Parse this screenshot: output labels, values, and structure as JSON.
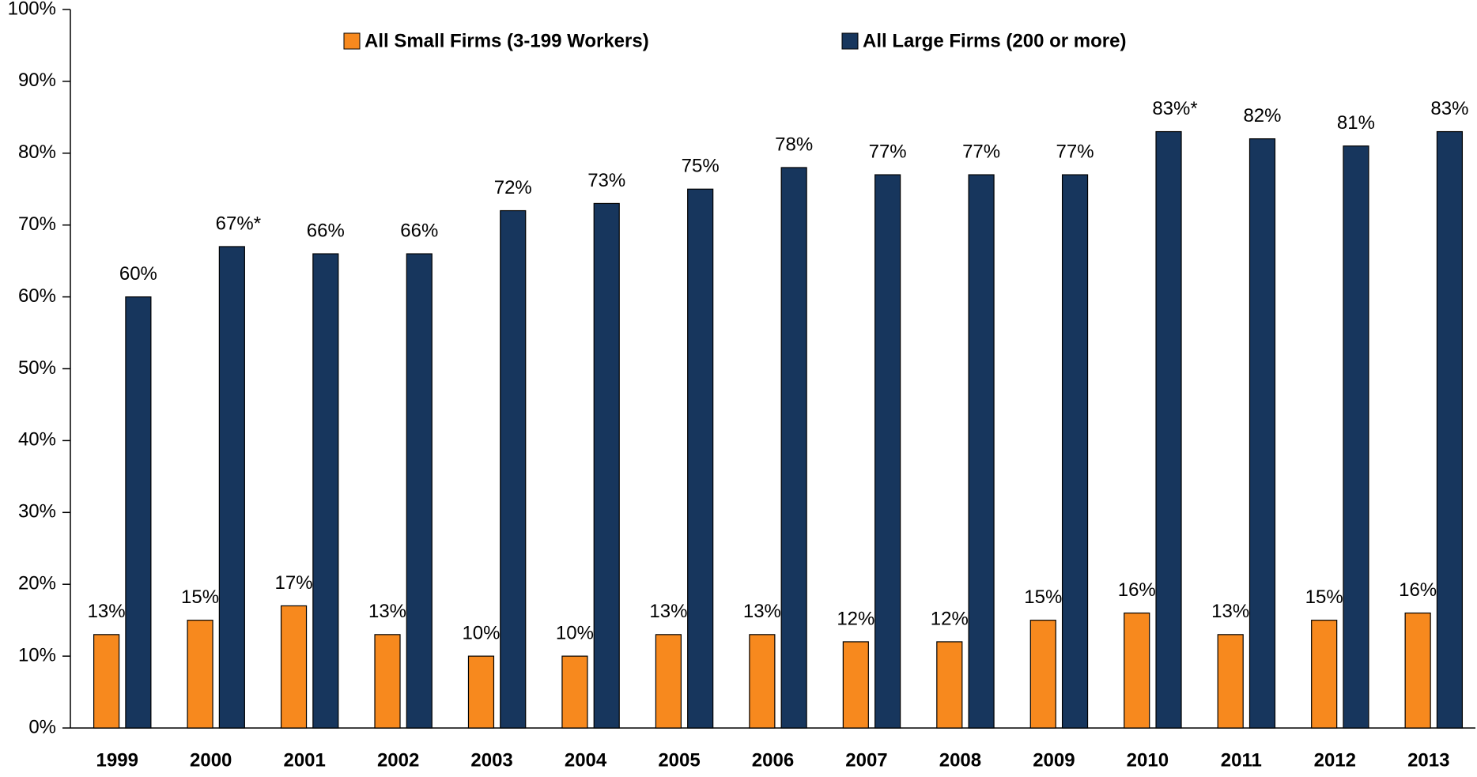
{
  "chart_data": {
    "type": "bar",
    "categories": [
      "1999",
      "2000",
      "2001",
      "2002",
      "2003",
      "2004",
      "2005",
      "2006",
      "2007",
      "2008",
      "2009",
      "2010",
      "2011",
      "2012",
      "2013"
    ],
    "series": [
      {
        "name": "All Small Firms (3-199 Workers)",
        "color": "#f7891e",
        "values": [
          13,
          15,
          17,
          13,
          10,
          10,
          13,
          13,
          12,
          12,
          15,
          16,
          13,
          15,
          16
        ],
        "value_labels": [
          "13%",
          "15%",
          "17%",
          "13%",
          "10%",
          "10%",
          "13%",
          "13%",
          "12%",
          "12%",
          "15%",
          "16%",
          "13%",
          "15%",
          "16%"
        ]
      },
      {
        "name": "All Large Firms (200 or more)",
        "color": "#17365d",
        "values": [
          60,
          67,
          66,
          66,
          72,
          73,
          75,
          78,
          77,
          77,
          77,
          83,
          82,
          81,
          83
        ],
        "value_labels": [
          "60%",
          "67%*",
          "66%",
          "66%",
          "72%",
          "73%",
          "75%",
          "78%",
          "77%",
          "77%",
          "77%",
          "83%*",
          "82%",
          "81%",
          "83%"
        ]
      }
    ],
    "ylim": [
      0,
      100
    ],
    "yticks": [
      {
        "value": 0,
        "label": "0%"
      },
      {
        "value": 10,
        "label": "10%"
      },
      {
        "value": 20,
        "label": "20%"
      },
      {
        "value": 30,
        "label": "30%"
      },
      {
        "value": 40,
        "label": "40%"
      },
      {
        "value": 50,
        "label": "50%"
      },
      {
        "value": 60,
        "label": "60%"
      },
      {
        "value": 70,
        "label": "70%"
      },
      {
        "value": 80,
        "label": "80%"
      },
      {
        "value": 90,
        "label": "90%"
      },
      {
        "value": 100,
        "label": "100%"
      }
    ],
    "grid": false,
    "legend": "top"
  }
}
